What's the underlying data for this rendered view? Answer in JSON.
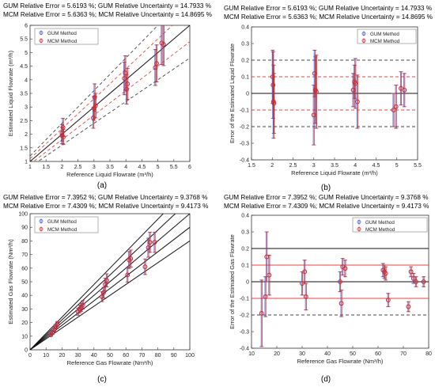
{
  "panels": [
    {
      "letter": "(a)",
      "header": [
        "GUM Relative Error = 5.6193 %; GUM Relative Uncertainty = 14.7933 %",
        "MCM Relative Error = 5.6363 %; MCM Relative Uncertainty = 14.8695 %"
      ]
    },
    {
      "letter": "(b)",
      "header": [
        "GUM Relative Error = 5.6193 %; GUM Relative Uncertainty = 14.7933 %",
        "MCM Relative Error = 5.6363 %; MCM Relative Uncertainty = 14.8695 %"
      ]
    },
    {
      "letter": "(c)",
      "header": [
        "GUM Relative Error = 7.3952 %; GUM Relative Uncertainty = 9.3768 %",
        "MCM Relative Error = 7.4309 %; MCM Relative Uncertainty = 9.4173 %"
      ]
    },
    {
      "letter": "(d)",
      "header": [
        "GUM Relative Error = 7.3952 %; GUM Relative Uncertainty = 9.3768 %",
        "MCM Relative Error = 7.4309 %; MCM Relative Uncertainty = 9.4173 %"
      ]
    }
  ],
  "colors": {
    "gum": "#3a5fcd",
    "mcm": "#d62728",
    "ref": "#111111",
    "band1": "#e8433f",
    "band2": "#444444",
    "mix": "#b3307a"
  },
  "chart_data": [
    {
      "type": "scatter",
      "xlabel": "Reference Liquid Flowrate (m³/h)",
      "ylabel": "Estimated Liquid Flowrate (m³/h)",
      "xlim": [
        1,
        6
      ],
      "ylim": [
        1,
        6
      ],
      "xticks": [
        1,
        1.5,
        2,
        2.5,
        3,
        3.5,
        4,
        4.5,
        5,
        5.5,
        6
      ],
      "yticks": [
        1,
        1.5,
        2,
        2.5,
        3,
        3.5,
        4,
        4.5,
        5,
        5.5,
        6
      ],
      "legend": [
        "GUM Method",
        "MCM Method"
      ],
      "legend_position": "top-left",
      "reference_lines": [
        {
          "kind": "identity",
          "style": "solid"
        },
        {
          "kind": "relative",
          "offset": 0.1,
          "style": "dashed-red"
        },
        {
          "kind": "relative",
          "offset": -0.1,
          "style": "dashed-red"
        },
        {
          "kind": "relative",
          "offset": 0.2,
          "style": "dashed-black"
        },
        {
          "kind": "relative",
          "offset": -0.2,
          "style": "dashed-black"
        }
      ],
      "series": [
        {
          "name": "GUM Method",
          "x": [
            2.0,
            2.0,
            2.03,
            2.04,
            2.98,
            3.0,
            3.02,
            3.05,
            3.95,
            3.98,
            4.02,
            4.05,
            4.92,
            4.96,
            5.12,
            5.18
          ],
          "y": [
            1.95,
            2.05,
            2.25,
            1.9,
            2.6,
            2.95,
            3.35,
            3.05,
            4.05,
            4.25,
            3.65,
            3.85,
            4.45,
            4.6,
            5.35,
            5.3
          ],
          "err": [
            0.3,
            0.3,
            0.33,
            0.28,
            0.38,
            0.44,
            0.5,
            0.45,
            0.6,
            0.63,
            0.54,
            0.57,
            0.66,
            0.68,
            0.79,
            0.78
          ]
        },
        {
          "name": "MCM Method",
          "x": [
            2.0,
            2.0,
            2.03,
            2.04,
            2.98,
            3.0,
            3.02,
            3.05,
            3.95,
            3.98,
            4.02,
            4.05,
            4.92,
            4.96,
            5.12,
            5.18
          ],
          "y": [
            1.95,
            2.05,
            2.25,
            1.9,
            2.6,
            2.95,
            3.35,
            3.05,
            4.05,
            4.25,
            3.65,
            3.85,
            4.45,
            4.6,
            5.35,
            5.3
          ],
          "err": [
            0.3,
            0.3,
            0.33,
            0.28,
            0.38,
            0.44,
            0.5,
            0.45,
            0.6,
            0.63,
            0.54,
            0.57,
            0.66,
            0.68,
            0.79,
            0.78
          ]
        }
      ]
    },
    {
      "type": "scatter",
      "xlabel": "Reference Liquid Flowrate (m³/h)",
      "ylabel": "Error of the Estimated Liquid Flowrate",
      "xlim": [
        1.5,
        5.5
      ],
      "ylim": [
        -0.4,
        0.4
      ],
      "xticks": [
        1.5,
        2,
        2.5,
        3,
        3.5,
        4,
        4.5,
        5,
        5.5
      ],
      "yticks": [
        -0.4,
        -0.3,
        -0.2,
        -0.1,
        0,
        0.1,
        0.2,
        0.3,
        0.4
      ],
      "legend": [
        "GUM Method",
        "MCM Method"
      ],
      "legend_position": "top-right",
      "reference_lines": [
        {
          "kind": "horizontal",
          "y": 0,
          "style": "solid"
        },
        {
          "kind": "horizontal",
          "y": 0.1,
          "style": "dashed-red"
        },
        {
          "kind": "horizontal",
          "y": -0.1,
          "style": "dashed-red"
        },
        {
          "kind": "horizontal",
          "y": 0.2,
          "style": "dashed-black"
        },
        {
          "kind": "horizontal",
          "y": -0.2,
          "style": "dashed-black"
        }
      ],
      "series": [
        {
          "name": "GUM Method",
          "x": [
            2.01,
            2.02,
            2.03,
            2.04,
            3.0,
            3.02,
            3.04,
            3.06,
            3.95,
            3.98,
            4.0,
            4.05,
            4.92,
            4.98,
            5.1,
            5.18
          ],
          "y": [
            0.1,
            0.05,
            -0.05,
            -0.06,
            -0.13,
            0.12,
            0.02,
            0.01,
            0.02,
            0.07,
            0.06,
            -0.05,
            -0.1,
            -0.08,
            0.03,
            0.02
          ],
          "err": [
            0.16,
            0.2,
            0.22,
            0.18,
            0.18,
            0.14,
            0.2,
            0.22,
            0.1,
            0.1,
            0.15,
            0.16,
            0.1,
            0.13,
            0.1,
            0.1
          ]
        },
        {
          "name": "MCM Method",
          "x": [
            2.01,
            2.02,
            2.03,
            2.04,
            3.0,
            3.02,
            3.04,
            3.06,
            3.95,
            3.98,
            4.0,
            4.05,
            4.92,
            4.98,
            5.1,
            5.18
          ],
          "y": [
            0.1,
            0.05,
            -0.05,
            -0.06,
            -0.13,
            0.12,
            0.02,
            0.01,
            0.02,
            0.07,
            0.06,
            -0.05,
            -0.1,
            -0.08,
            0.03,
            0.02
          ],
          "err": [
            0.16,
            0.2,
            0.22,
            0.18,
            0.18,
            0.14,
            0.2,
            0.22,
            0.1,
            0.1,
            0.15,
            0.16,
            0.1,
            0.13,
            0.1,
            0.1
          ]
        }
      ]
    },
    {
      "type": "scatter",
      "xlabel": "Reference Gas Flowrate (Nm³/h)",
      "ylabel": "Estimated Gas Flowrate (Nm³/h)",
      "xlim": [
        0,
        100
      ],
      "ylim": [
        0,
        100
      ],
      "xticks": [
        0,
        10,
        20,
        30,
        40,
        50,
        60,
        70,
        80,
        90,
        100
      ],
      "yticks": [
        0,
        10,
        20,
        30,
        40,
        50,
        60,
        70,
        80,
        90,
        100
      ],
      "legend": [
        "GUM Method",
        "MCM Method"
      ],
      "legend_position": "top-left",
      "reference_lines": [
        {
          "kind": "identity",
          "style": "solid"
        },
        {
          "kind": "relative",
          "offset": 0.1,
          "style": "solid"
        },
        {
          "kind": "relative",
          "offset": -0.1,
          "style": "solid"
        },
        {
          "kind": "relative",
          "offset": 0.2,
          "style": "solid"
        },
        {
          "kind": "relative",
          "offset": -0.2,
          "style": "solid"
        }
      ],
      "series": [
        {
          "name": "GUM Method",
          "x": [
            13,
            14,
            15,
            16,
            17,
            30,
            31,
            32,
            33,
            45,
            46,
            47,
            48,
            61,
            62,
            63,
            72,
            74,
            75,
            78
          ],
          "y": [
            11,
            12.5,
            14.5,
            17,
            19,
            28,
            30,
            31,
            33,
            39,
            42,
            48,
            51,
            55,
            66,
            67,
            61,
            75,
            79,
            79
          ],
          "err": [
            1.0,
            1.2,
            1.4,
            1.6,
            1.8,
            2.6,
            2.8,
            2.9,
            3.1,
            3.6,
            3.9,
            4.5,
            4.8,
            5.2,
            6.2,
            6.3,
            5.7,
            7.0,
            7.4,
            7.4
          ]
        },
        {
          "name": "MCM Method",
          "x": [
            13,
            14,
            15,
            16,
            17,
            30,
            31,
            32,
            33,
            45,
            46,
            47,
            48,
            61,
            62,
            63,
            72,
            74,
            75,
            78
          ],
          "y": [
            11,
            12.5,
            14.5,
            17,
            19,
            28,
            30,
            31,
            33,
            39,
            42,
            48,
            51,
            55,
            66,
            67,
            61,
            75,
            79,
            79
          ],
          "err": [
            1.0,
            1.2,
            1.4,
            1.6,
            1.8,
            2.6,
            2.8,
            2.9,
            3.1,
            3.6,
            3.9,
            4.5,
            4.8,
            5.2,
            6.2,
            6.3,
            5.7,
            7.0,
            7.4,
            7.4
          ]
        }
      ]
    },
    {
      "type": "scatter",
      "xlabel": "Reference Gas Flowrate (Nm³/h)",
      "ylabel": "Error of the Estimated Gas Flowrate",
      "xlim": [
        10,
        80
      ],
      "ylim": [
        -0.4,
        0.4
      ],
      "xticks": [
        10,
        20,
        30,
        40,
        50,
        60,
        70,
        80
      ],
      "yticks": [
        -0.4,
        -0.3,
        -0.2,
        -0.1,
        0,
        0.1,
        0.2,
        0.3,
        0.4
      ],
      "legend": [
        "GUM Method",
        "MCM Method"
      ],
      "legend_position": "top-right",
      "reference_lines": [
        {
          "kind": "horizontal",
          "y": 0,
          "style": "solid"
        },
        {
          "kind": "horizontal",
          "y": 0.1,
          "style": "solid-red"
        },
        {
          "kind": "horizontal",
          "y": -0.1,
          "style": "solid-red"
        },
        {
          "kind": "horizontal",
          "y": 0.2,
          "style": "solid"
        },
        {
          "kind": "horizontal",
          "y": -0.2,
          "style": "dashed-black"
        }
      ],
      "series": [
        {
          "name": "GUM Method",
          "x": [
            14,
            15.5,
            16,
            17,
            30,
            31,
            31.5,
            45,
            45.5,
            46,
            47,
            62,
            62.5,
            63,
            64,
            72,
            73,
            74,
            75,
            78
          ],
          "y": [
            -0.19,
            -0.09,
            0.15,
            0.04,
            -0.01,
            0.06,
            -0.09,
            0.0,
            -0.13,
            0.09,
            0.08,
            0.07,
            0.06,
            0.05,
            -0.11,
            -0.15,
            0.06,
            0.02,
            0.0,
            0.0
          ],
          "err": [
            0.2,
            0.12,
            0.15,
            0.12,
            0.07,
            0.07,
            0.08,
            0.06,
            0.08,
            0.05,
            0.05,
            0.04,
            0.04,
            0.04,
            0.04,
            0.03,
            0.03,
            0.03,
            0.03,
            0.03
          ]
        },
        {
          "name": "MCM Method",
          "x": [
            14,
            15.5,
            16,
            17,
            30,
            31,
            31.5,
            45,
            45.5,
            46,
            47,
            62,
            62.5,
            63,
            64,
            72,
            73,
            74,
            75,
            78
          ],
          "y": [
            -0.19,
            -0.09,
            0.15,
            0.04,
            -0.01,
            0.06,
            -0.09,
            0.0,
            -0.13,
            0.09,
            0.08,
            0.07,
            0.06,
            0.05,
            -0.11,
            -0.15,
            0.06,
            0.02,
            0.0,
            0.0
          ],
          "err": [
            0.2,
            0.12,
            0.15,
            0.12,
            0.07,
            0.07,
            0.08,
            0.06,
            0.08,
            0.05,
            0.05,
            0.04,
            0.04,
            0.04,
            0.04,
            0.03,
            0.03,
            0.03,
            0.03,
            0.03
          ]
        }
      ]
    }
  ]
}
